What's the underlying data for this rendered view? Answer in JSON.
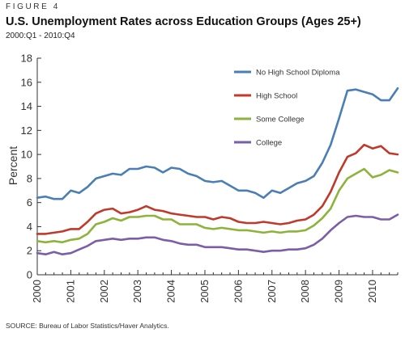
{
  "figure_label": "FIGURE 4",
  "source": "SOURCE: Bureau of Labor Statistics/Haver Analytics.",
  "chart_data": {
    "type": "line",
    "title": "U.S. Unemployment Rates across Education Groups (Ages 25+)",
    "subtitle": "2000:Q1 - 2010:Q4",
    "xlabel": "",
    "ylabel": "Percent",
    "ylim": [
      0,
      18
    ],
    "yticks": [
      0,
      2,
      4,
      6,
      8,
      10,
      12,
      14,
      16,
      18
    ],
    "xlim": [
      2000,
      2010.75
    ],
    "xticks": [
      "2000",
      "2001",
      "2002",
      "2003",
      "2004",
      "2005",
      "2006",
      "2007",
      "2008",
      "2009",
      "2010"
    ],
    "grid": false,
    "legend_position": "top-right",
    "x": [
      2000.0,
      2000.25,
      2000.5,
      2000.75,
      2001.0,
      2001.25,
      2001.5,
      2001.75,
      2002.0,
      2002.25,
      2002.5,
      2002.75,
      2003.0,
      2003.25,
      2003.5,
      2003.75,
      2004.0,
      2004.25,
      2004.5,
      2004.75,
      2005.0,
      2005.25,
      2005.5,
      2005.75,
      2006.0,
      2006.25,
      2006.5,
      2006.75,
      2007.0,
      2007.25,
      2007.5,
      2007.75,
      2008.0,
      2008.25,
      2008.5,
      2008.75,
      2009.0,
      2009.25,
      2009.5,
      2009.75,
      2010.0,
      2010.25,
      2010.5,
      2010.75
    ],
    "series": [
      {
        "name": "No High School Diploma",
        "color": "#4a7fb5",
        "values": [
          6.4,
          6.5,
          6.3,
          6.3,
          7.0,
          6.8,
          7.3,
          8.0,
          8.2,
          8.4,
          8.3,
          8.8,
          8.8,
          9.0,
          8.9,
          8.5,
          8.9,
          8.8,
          8.4,
          8.2,
          7.8,
          7.7,
          7.8,
          7.4,
          7.0,
          7.0,
          6.8,
          6.4,
          7.0,
          6.8,
          7.2,
          7.6,
          7.8,
          8.2,
          9.3,
          10.8,
          13.0,
          15.3,
          15.4,
          15.2,
          15.0,
          14.5,
          14.5,
          15.5
        ]
      },
      {
        "name": "High School",
        "color": "#c0392b",
        "values": [
          3.4,
          3.4,
          3.5,
          3.6,
          3.8,
          3.8,
          4.4,
          5.1,
          5.4,
          5.5,
          5.1,
          5.2,
          5.4,
          5.7,
          5.4,
          5.3,
          5.1,
          5.0,
          4.9,
          4.8,
          4.8,
          4.6,
          4.8,
          4.7,
          4.4,
          4.3,
          4.3,
          4.4,
          4.3,
          4.2,
          4.3,
          4.5,
          4.6,
          5.0,
          5.7,
          6.9,
          8.5,
          9.8,
          10.1,
          10.8,
          10.5,
          10.7,
          10.1,
          10.0
        ]
      },
      {
        "name": "Some College",
        "color": "#8db33a",
        "values": [
          2.8,
          2.7,
          2.8,
          2.7,
          2.9,
          3.0,
          3.4,
          4.2,
          4.4,
          4.7,
          4.5,
          4.8,
          4.8,
          4.9,
          4.9,
          4.6,
          4.6,
          4.2,
          4.2,
          4.2,
          3.9,
          3.8,
          3.9,
          3.8,
          3.7,
          3.7,
          3.6,
          3.5,
          3.6,
          3.5,
          3.6,
          3.6,
          3.7,
          4.1,
          4.7,
          5.5,
          7.0,
          8.0,
          8.4,
          8.8,
          8.1,
          8.3,
          8.7,
          8.5
        ]
      },
      {
        "name": "College",
        "color": "#7b5ea7",
        "values": [
          1.8,
          1.7,
          1.9,
          1.7,
          1.8,
          2.1,
          2.4,
          2.8,
          2.9,
          3.0,
          2.9,
          3.0,
          3.0,
          3.1,
          3.1,
          2.9,
          2.8,
          2.6,
          2.5,
          2.5,
          2.3,
          2.3,
          2.3,
          2.2,
          2.1,
          2.1,
          2.0,
          1.9,
          2.0,
          2.0,
          2.1,
          2.1,
          2.2,
          2.5,
          3.0,
          3.7,
          4.3,
          4.8,
          4.9,
          4.8,
          4.8,
          4.6,
          4.6,
          5.0
        ]
      }
    ]
  }
}
